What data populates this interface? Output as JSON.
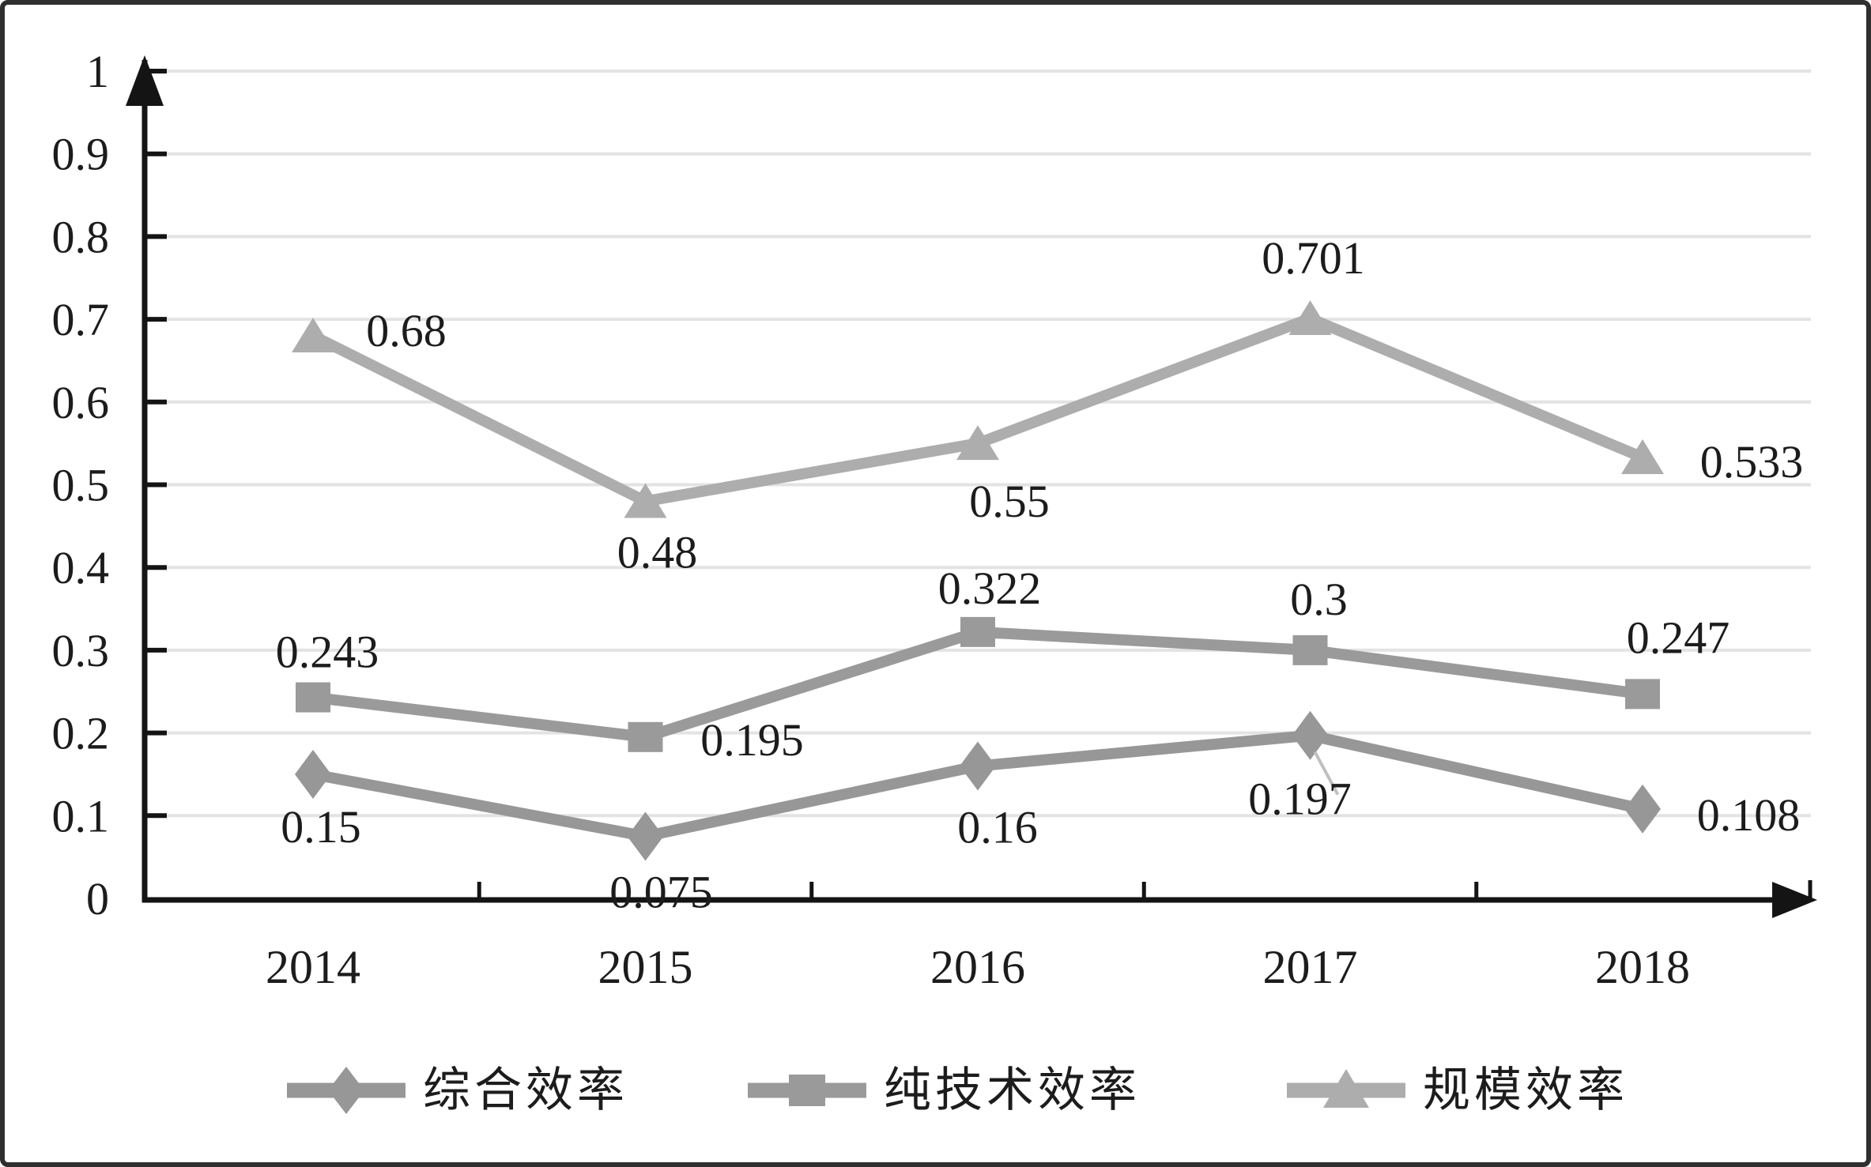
{
  "chart_data": {
    "type": "line",
    "title": "",
    "xlabel": "",
    "ylabel": "",
    "categories": [
      "2014",
      "2015",
      "2016",
      "2017",
      "2018"
    ],
    "series": [
      {
        "name": "综合效率",
        "marker": "diamond",
        "color": "#979797",
        "values": [
          0.15,
          0.075,
          0.16,
          0.197,
          0.108
        ],
        "point_labels": [
          "0.15",
          "0.075",
          "0.16",
          "0.197",
          "0.108"
        ]
      },
      {
        "name": "纯技术效率",
        "marker": "square",
        "color": "#9a9a9a",
        "values": [
          0.243,
          0.195,
          0.322,
          0.3,
          0.247
        ],
        "point_labels": [
          "0.243",
          "0.195",
          "0.322",
          "0.3",
          "0.247"
        ]
      },
      {
        "name": "规模效率",
        "marker": "triangle",
        "color": "#adadad",
        "values": [
          0.68,
          0.48,
          0.55,
          0.701,
          0.533
        ],
        "point_labels": [
          "0.68",
          "0.48",
          "0.55",
          "0.701",
          "0.533"
        ]
      }
    ],
    "y_axis": {
      "min": 0,
      "max": 1,
      "ticks": [
        "0",
        "0.1",
        "0.2",
        "0.3",
        "0.4",
        "0.5",
        "0.6",
        "0.7",
        "0.8",
        "0.9",
        "1"
      ]
    },
    "grid": true,
    "legend_position": "bottom",
    "label_offsets": [
      [
        [
          10,
          66
        ],
        [
          20,
          70
        ],
        [
          25,
          77
        ],
        [
          -13,
          80
        ],
        [
          134,
          7
        ]
      ],
      [
        [
          18,
          -58
        ],
        [
          135,
          3
        ],
        [
          15,
          -56
        ],
        [
          11,
          -65
        ],
        [
          45,
          -72
        ]
      ],
      [
        [
          118,
          -7
        ],
        [
          15,
          64
        ],
        [
          40,
          73
        ],
        [
          4,
          -77
        ],
        [
          138,
          5
        ]
      ]
    ],
    "leader_line": {
      "series": 0,
      "point": 3
    }
  },
  "colors": {
    "background": "#ffffff",
    "border": "#2f2f2f",
    "gridline": "#e3e3e3",
    "axis": "#141414",
    "text": "#1c1c1c",
    "leader": "#c0c0c0",
    "series_comprehensive": "#979797",
    "series_pure_technical": "#9a9a9a",
    "series_scale": "#adadad"
  }
}
